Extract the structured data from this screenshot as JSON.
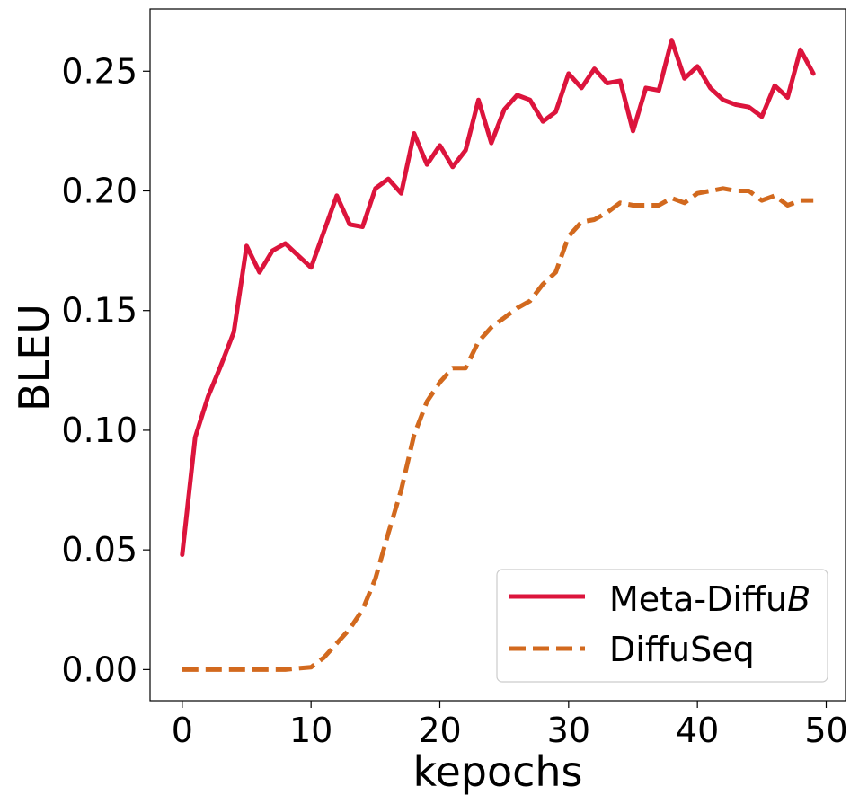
{
  "chart_data": {
    "type": "line",
    "xlabel": "kepochs",
    "ylabel": "BLEU",
    "xlim": [
      -2.5,
      51.5
    ],
    "ylim": [
      -0.013,
      0.276
    ],
    "xticks": [
      0,
      10,
      20,
      30,
      40,
      50
    ],
    "xtick_labels": [
      "0",
      "10",
      "20",
      "30",
      "40",
      "50"
    ],
    "yticks": [
      0.0,
      0.05,
      0.1,
      0.15,
      0.2,
      0.25
    ],
    "ytick_labels": [
      "0.00",
      "0.05",
      "0.10",
      "0.15",
      "0.20",
      "0.25"
    ],
    "grid": false,
    "legend_position": "bottom-right",
    "x": [
      0,
      1,
      2,
      3,
      4,
      5,
      6,
      7,
      8,
      9,
      10,
      11,
      12,
      13,
      14,
      15,
      16,
      17,
      18,
      19,
      20,
      21,
      22,
      23,
      24,
      25,
      26,
      27,
      28,
      29,
      30,
      31,
      32,
      33,
      34,
      35,
      36,
      37,
      38,
      39,
      40,
      41,
      42,
      43,
      44,
      45,
      46,
      47,
      48,
      49
    ],
    "series": [
      {
        "name": "Meta-Diffu",
        "name_italic_suffix": "B",
        "color": "#dc143c",
        "style": "solid",
        "values": [
          0.048,
          0.097,
          0.114,
          0.127,
          0.141,
          0.177,
          0.166,
          0.175,
          0.178,
          0.173,
          0.168,
          0.183,
          0.198,
          0.186,
          0.185,
          0.201,
          0.205,
          0.199,
          0.224,
          0.211,
          0.219,
          0.21,
          0.217,
          0.238,
          0.22,
          0.234,
          0.24,
          0.238,
          0.229,
          0.233,
          0.249,
          0.243,
          0.251,
          0.245,
          0.246,
          0.225,
          0.243,
          0.242,
          0.263,
          0.247,
          0.252,
          0.243,
          0.238,
          0.236,
          0.235,
          0.231,
          0.244,
          0.239,
          0.259,
          0.249
        ]
      },
      {
        "name": "DiffuSeq",
        "color": "#d2691e",
        "style": "dashed",
        "values": [
          0.0,
          0.0,
          0.0,
          0.0,
          0.0,
          0.0,
          0.0,
          0.0,
          0.0,
          0.0005,
          0.001,
          0.005,
          0.011,
          0.017,
          0.025,
          0.038,
          0.057,
          0.075,
          0.098,
          0.112,
          0.12,
          0.126,
          0.126,
          0.137,
          0.143,
          0.147,
          0.151,
          0.154,
          0.161,
          0.166,
          0.181,
          0.187,
          0.188,
          0.191,
          0.195,
          0.194,
          0.194,
          0.194,
          0.197,
          0.195,
          0.199,
          0.2,
          0.201,
          0.2,
          0.2,
          0.196,
          0.198,
          0.194,
          0.196,
          0.196
        ]
      }
    ]
  }
}
